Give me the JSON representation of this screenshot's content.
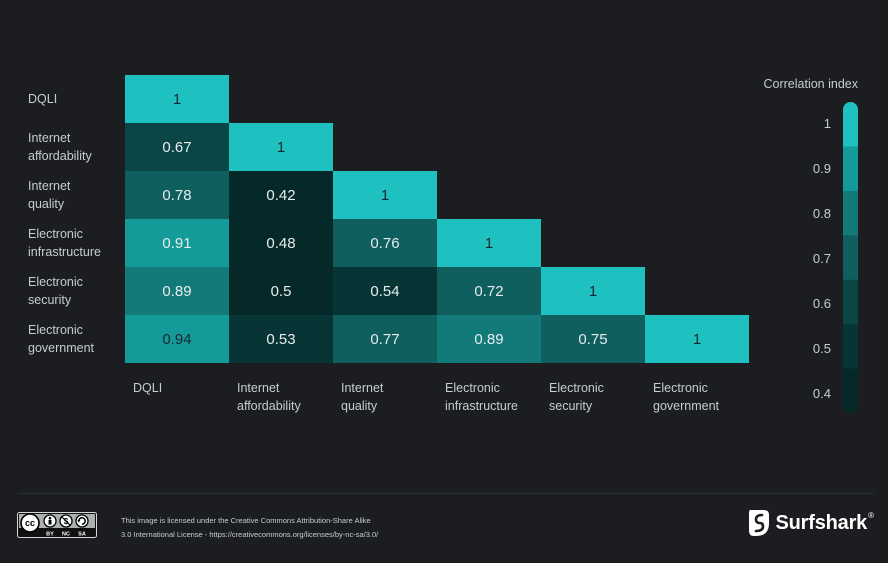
{
  "chart_data": {
    "type": "heatmap",
    "row_labels": [
      [
        "DQLI"
      ],
      [
        "Internet",
        "affordability"
      ],
      [
        "Internet",
        "quality"
      ],
      [
        "Electronic",
        "infrastructure"
      ],
      [
        "Electronic",
        "security"
      ],
      [
        "Electronic",
        "government"
      ]
    ],
    "column_labels": [
      [
        "DQLI"
      ],
      [
        "Internet",
        "affordability"
      ],
      [
        "Internet",
        "quality"
      ],
      [
        "Electronic",
        "infrastructure"
      ],
      [
        "Electronic",
        "security"
      ],
      [
        "Electronic",
        "government"
      ]
    ],
    "values": [
      [
        1
      ],
      [
        0.67,
        1
      ],
      [
        0.78,
        0.42,
        1
      ],
      [
        0.91,
        0.48,
        0.76,
        1
      ],
      [
        0.89,
        0.5,
        0.54,
        0.72,
        1
      ],
      [
        0.94,
        0.53,
        0.77,
        0.89,
        0.75,
        1
      ]
    ],
    "legend": {
      "title": "Correlation index",
      "ticks": [
        "1",
        "0.9",
        "0.8",
        "0.7",
        "0.6",
        "0.5",
        "0.4"
      ],
      "range": [
        0.4,
        1
      ],
      "colors": [
        "#1fc0c0",
        "#159a9a",
        "#137a7a",
        "#0f5f5f",
        "#0b4646",
        "#073535",
        "#052828"
      ]
    }
  },
  "footer": {
    "license_line1": "This image is licensed under the Creative Commons Attribution-Share Alike",
    "license_line2": "3.0 International License - https://creativecommons.org/licenses/by-nc-sa/3.0/",
    "cc_labels": [
      "BY",
      "NC",
      "SA"
    ],
    "cc_mark": "cc",
    "brand": "Surfshark",
    "brand_mark": "®"
  }
}
